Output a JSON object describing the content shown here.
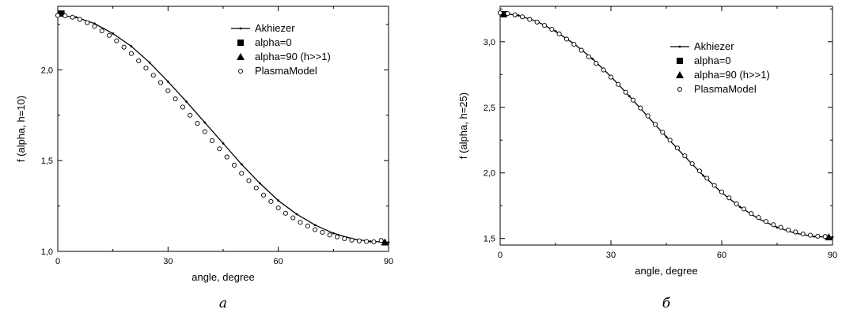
{
  "chart_data": [
    {
      "type": "line",
      "panel_label": "а",
      "xlabel": "angle, degree",
      "ylabel": "f (alpha, h=10)",
      "xlim": [
        0,
        90
      ],
      "ylim": [
        1.0,
        2.35
      ],
      "xticks": [
        0,
        30,
        60,
        90
      ],
      "xtick_labels": [
        "0",
        "30",
        "60",
        "90"
      ],
      "yticks": [
        1.0,
        1.5,
        2.0
      ],
      "ytick_labels": [
        "1,0",
        "1,5",
        "2,0"
      ],
      "grid": false,
      "legend_position": "top-right",
      "series": [
        {
          "name": "Akhiezer",
          "marker": "small-dot",
          "x": [
            0,
            5,
            10,
            15,
            20,
            25,
            30,
            35,
            40,
            45,
            50,
            55,
            60,
            65,
            70,
            75,
            80,
            85,
            90
          ],
          "values": [
            2.3,
            2.29,
            2.255,
            2.2,
            2.13,
            2.04,
            1.935,
            1.825,
            1.71,
            1.595,
            1.48,
            1.375,
            1.28,
            1.205,
            1.145,
            1.1,
            1.07,
            1.055,
            1.05
          ]
        },
        {
          "name": "alpha=0",
          "marker": "filled-square",
          "x": [
            1
          ],
          "values": [
            2.31
          ]
        },
        {
          "name": "alpha=90 (h>>1)",
          "marker": "filled-triangle",
          "x": [
            89
          ],
          "values": [
            1.05
          ]
        },
        {
          "name": "PlasmaModel",
          "marker": "open-circle",
          "x": [
            0,
            2,
            4,
            6,
            8,
            10,
            12,
            14,
            16,
            18,
            20,
            22,
            24,
            26,
            28,
            30,
            32,
            34,
            36,
            38,
            40,
            42,
            44,
            46,
            48,
            50,
            52,
            54,
            56,
            58,
            60,
            62,
            64,
            66,
            68,
            70,
            72,
            74,
            76,
            78,
            80,
            82,
            84,
            86,
            88
          ],
          "values": [
            2.3,
            2.298,
            2.29,
            2.278,
            2.26,
            2.24,
            2.215,
            2.19,
            2.16,
            2.125,
            2.09,
            2.05,
            2.01,
            1.97,
            1.93,
            1.885,
            1.84,
            1.795,
            1.75,
            1.705,
            1.66,
            1.61,
            1.565,
            1.52,
            1.475,
            1.43,
            1.39,
            1.35,
            1.31,
            1.275,
            1.24,
            1.21,
            1.185,
            1.16,
            1.14,
            1.12,
            1.105,
            1.09,
            1.08,
            1.07,
            1.062,
            1.058,
            1.055,
            1.053,
            1.06
          ]
        }
      ]
    },
    {
      "type": "line",
      "panel_label": "б",
      "xlabel": "angle, degree",
      "ylabel": "f (alpha, h=25)",
      "xlim": [
        0,
        90
      ],
      "ylim": [
        1.45,
        3.27
      ],
      "xticks": [
        0,
        30,
        60,
        90
      ],
      "xtick_labels": [
        "0",
        "30",
        "60",
        "90"
      ],
      "yticks": [
        1.5,
        2.0,
        2.5,
        3.0
      ],
      "ytick_labels": [
        "1,5",
        "2,0",
        "2,5",
        "3,0"
      ],
      "grid": false,
      "legend_position": "top-right",
      "series": [
        {
          "name": "Akhiezer",
          "marker": "small-dot",
          "x": [
            0,
            5,
            10,
            15,
            20,
            25,
            30,
            35,
            40,
            45,
            50,
            55,
            60,
            65,
            70,
            75,
            80,
            85,
            90
          ],
          "values": [
            3.22,
            3.2,
            3.155,
            3.08,
            2.985,
            2.87,
            2.735,
            2.585,
            2.43,
            2.275,
            2.125,
            1.98,
            1.85,
            1.74,
            1.65,
            1.585,
            1.54,
            1.515,
            1.51
          ]
        },
        {
          "name": "alpha=0",
          "marker": "filled-square",
          "x": [
            1
          ],
          "values": [
            3.21
          ]
        },
        {
          "name": "alpha=90 (h>>1)",
          "marker": "filled-triangle",
          "x": [
            89
          ],
          "values": [
            1.51
          ]
        },
        {
          "name": "PlasmaModel",
          "marker": "open-circle",
          "x": [
            0,
            2,
            4,
            6,
            8,
            10,
            12,
            14,
            16,
            18,
            20,
            22,
            24,
            26,
            28,
            30,
            32,
            34,
            36,
            38,
            40,
            42,
            44,
            46,
            48,
            50,
            52,
            54,
            56,
            58,
            60,
            62,
            64,
            66,
            68,
            70,
            72,
            74,
            76,
            78,
            80,
            82,
            84,
            86,
            88
          ],
          "values": [
            3.22,
            3.215,
            3.205,
            3.19,
            3.17,
            3.15,
            3.125,
            3.095,
            3.06,
            3.02,
            2.98,
            2.935,
            2.885,
            2.835,
            2.785,
            2.73,
            2.675,
            2.615,
            2.555,
            2.495,
            2.435,
            2.37,
            2.31,
            2.25,
            2.19,
            2.13,
            2.07,
            2.015,
            1.96,
            1.905,
            1.855,
            1.81,
            1.765,
            1.725,
            1.69,
            1.66,
            1.63,
            1.605,
            1.585,
            1.565,
            1.55,
            1.535,
            1.525,
            1.517,
            1.515
          ]
        }
      ]
    }
  ]
}
